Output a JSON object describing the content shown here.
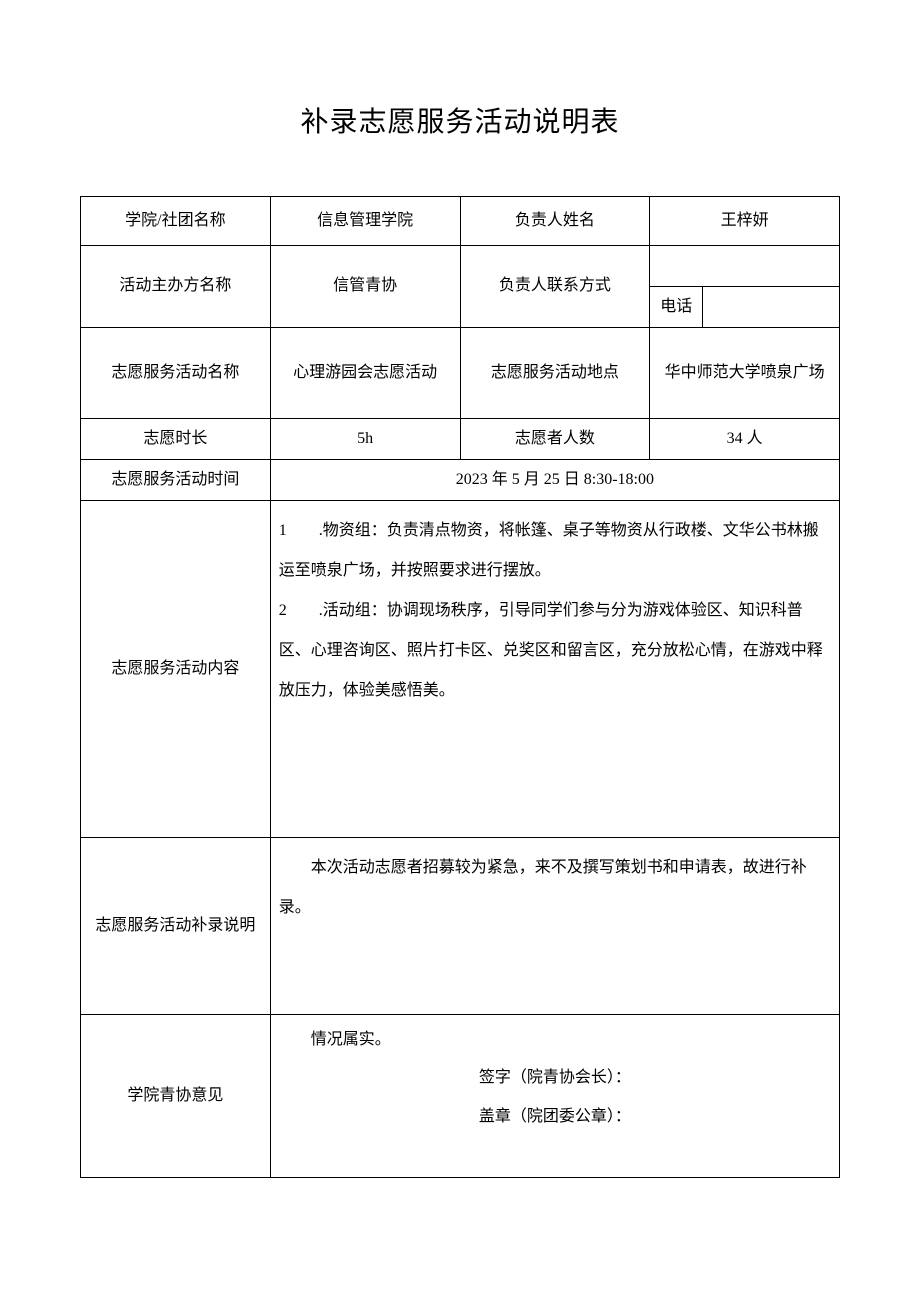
{
  "title": "补录志愿服务活动说明表",
  "rows": {
    "r1": {
      "label1": "学院/社团名称",
      "value1": "信息管理学院",
      "label2": "负责人姓名",
      "value2": "王梓妍"
    },
    "r2": {
      "label1": "活动主办方名称",
      "value1": "信管青协",
      "label2": "负责人联系方式",
      "phone_label": "电话",
      "phone_value": ""
    },
    "r3": {
      "label1": "志愿服务活动名称",
      "value1": "心理游园会志愿活动",
      "label2": "志愿服务活动地点",
      "value2": "华中师范大学喷泉广场"
    },
    "r4": {
      "label1": "志愿时长",
      "value1": "5h",
      "label2": "志愿者人数",
      "value2": "34 人"
    },
    "r5": {
      "label1": "志愿服务活动时间",
      "value1": "2023 年 5 月 25 日 8:30-18:00"
    },
    "content": {
      "label": "志愿服务活动内容",
      "line1": "1　　.物资组：负责清点物资，将帐篷、桌子等物资从行政楼、文华公书林搬运至喷泉广场，并按照要求进行摆放。",
      "line2": "2　　.活动组：协调现场秩序，引导同学们参与分为游戏体验区、知识科普区、心理咨询区、照片打卡区、兑奖区和留言区，充分放松心情，在游戏中释放压力，体验美感悟美。"
    },
    "supplement": {
      "label": "志愿服务活动补录说明",
      "text": "　　本次活动志愿者招募较为紧急，来不及撰写策划书和申请表，故进行补录。"
    },
    "opinion": {
      "label": "学院青协意见",
      "line1": "　　情况属实。",
      "sig1": "签字（院青协会长）：",
      "sig2": "盖章（院团委公章）："
    }
  },
  "colors": {
    "text": "#000000",
    "background": "#ffffff",
    "border": "#000000"
  },
  "font_size_body": 16,
  "font_size_title": 28
}
